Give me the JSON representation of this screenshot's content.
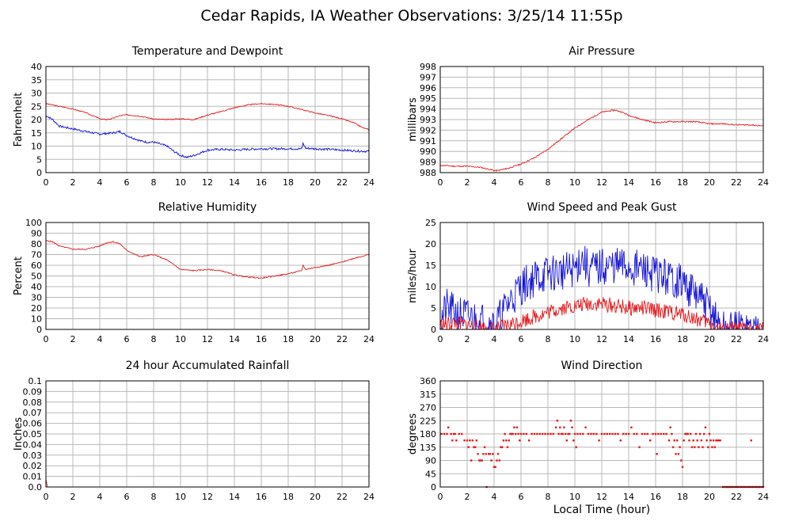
{
  "page": {
    "title": "Cedar Rapids, IA Weather Observations: 3/25/14 11:55p"
  },
  "colors": {
    "red": "#e4191c",
    "blue": "#1414d8",
    "grid": "#b8b8b8"
  },
  "xaxis": {
    "label": "Local Time (hour)",
    "ticks": [
      0,
      2,
      4,
      6,
      8,
      10,
      12,
      14,
      16,
      18,
      20,
      22,
      24
    ],
    "range": [
      0,
      24
    ]
  },
  "chart_data": [
    {
      "id": "temp",
      "type": "line",
      "title": "Temperature and Dewpoint",
      "ylabel": "Fahrenheit",
      "xlabel": "",
      "ylim": [
        0,
        40
      ],
      "yticks": [
        0,
        5,
        10,
        15,
        20,
        25,
        30,
        35,
        40
      ],
      "grid": true,
      "series": [
        {
          "color": "#e4191c",
          "noise": 0.2,
          "seed": 3,
          "x": [
            0,
            1,
            2,
            3,
            3.7,
            4,
            4.5,
            5,
            5.5,
            6,
            7,
            8,
            9,
            10,
            11,
            12,
            13,
            14,
            15,
            15.5,
            16,
            17,
            18,
            19,
            20,
            21,
            22,
            23,
            23.5,
            24
          ],
          "y": [
            26,
            25,
            24,
            22.5,
            21,
            20.3,
            20,
            20.5,
            21.5,
            21.8,
            21.3,
            20.2,
            20,
            20.3,
            20,
            21.7,
            23,
            24.5,
            25.5,
            25.8,
            26,
            25.7,
            25,
            23.8,
            22.5,
            21.5,
            20.3,
            18.5,
            17,
            16.2
          ]
        },
        {
          "color": "#1414d8",
          "noise": 0.4,
          "seed": 7,
          "x": [
            0,
            0.5,
            1,
            2,
            3,
            4,
            5,
            5.5,
            6,
            7,
            7.5,
            8,
            9,
            9.5,
            10,
            10.5,
            11,
            11.5,
            12,
            13,
            14,
            15,
            16,
            17,
            18,
            19,
            19.1,
            19.3,
            20,
            21,
            22,
            23,
            24
          ],
          "y": [
            21.5,
            20,
            17.5,
            16.5,
            15.5,
            14.5,
            15,
            15.5,
            14,
            12,
            11.5,
            11.5,
            10,
            8,
            6.5,
            5.8,
            6.5,
            7.5,
            8.5,
            8.8,
            8.5,
            8.8,
            9,
            9,
            9,
            9,
            11,
            9.2,
            9,
            8.8,
            8.5,
            8.2,
            8
          ]
        }
      ]
    },
    {
      "id": "pressure",
      "type": "line",
      "title": "Air Pressure",
      "ylabel": "millibars",
      "xlabel": "",
      "ylim": [
        988,
        998
      ],
      "yticks": [
        988,
        989,
        990,
        991,
        992,
        993,
        994,
        995,
        996,
        997,
        998
      ],
      "grid": true,
      "series": [
        {
          "color": "#e4191c",
          "noise": 0.06,
          "seed": 11,
          "x": [
            0,
            1,
            2,
            3,
            4,
            4.3,
            5,
            6,
            7,
            8,
            9,
            10,
            11,
            12,
            12.5,
            13,
            13.5,
            14,
            15,
            16,
            17,
            18,
            19,
            20,
            21,
            22,
            23,
            24
          ],
          "y": [
            988.7,
            988.6,
            988.6,
            988.5,
            988.2,
            988.2,
            988.4,
            988.8,
            989.4,
            990.2,
            991.2,
            992.2,
            993,
            993.7,
            993.8,
            993.9,
            993.7,
            993.4,
            993,
            992.7,
            992.8,
            992.8,
            992.8,
            992.6,
            992.6,
            992.5,
            992.5,
            992.4
          ]
        }
      ]
    },
    {
      "id": "humidity",
      "type": "line",
      "title": "Relative Humidity",
      "ylabel": "Percent",
      "xlabel": "",
      "ylim": [
        0,
        100
      ],
      "yticks": [
        0,
        10,
        20,
        30,
        40,
        50,
        60,
        70,
        80,
        90,
        100
      ],
      "grid": true,
      "series": [
        {
          "color": "#e4191c",
          "noise": 0.5,
          "seed": 5,
          "x": [
            0,
            0.5,
            1,
            2,
            3,
            4,
            4.5,
            5,
            5.5,
            6,
            7,
            8,
            9,
            10,
            11,
            12,
            13,
            14,
            15,
            16,
            17,
            18,
            19,
            19.1,
            19.3,
            20,
            21,
            22,
            23,
            24
          ],
          "y": [
            83,
            82,
            78,
            75,
            75,
            78,
            81,
            82,
            80,
            74,
            68,
            70,
            65,
            56,
            55,
            56,
            55,
            51,
            49,
            48,
            50,
            52,
            55,
            60,
            56,
            58,
            60,
            63,
            67,
            70
          ]
        }
      ]
    },
    {
      "id": "wind",
      "type": "line",
      "title": "Wind Speed and Peak Gust",
      "ylabel": "miles/hour",
      "xlabel": "",
      "ylim": [
        0,
        25
      ],
      "yticks": [
        0,
        5,
        10,
        15,
        20,
        25
      ],
      "grid": true,
      "series": [
        {
          "color": "#1414d8",
          "noise": 4.5,
          "seed": 21,
          "x": [
            0,
            0.5,
            1,
            2,
            3,
            3.5,
            4,
            4.5,
            5,
            6,
            7,
            8,
            9,
            10,
            10.5,
            11,
            12,
            13,
            14,
            15,
            16,
            17,
            18,
            19,
            20,
            20.5,
            21,
            22,
            23,
            23.1,
            23.2,
            24
          ],
          "y": [
            2,
            5,
            4,
            3,
            2,
            2,
            1,
            3,
            6,
            10,
            12,
            13,
            13.5,
            14,
            17,
            14,
            14.5,
            15,
            14.5,
            14,
            13,
            12,
            11,
            8,
            5,
            2,
            0,
            0,
            0,
            1,
            0,
            0
          ]
        },
        {
          "color": "#e4191c",
          "noise": 1.8,
          "seed": 33,
          "x": [
            0,
            1,
            2,
            3,
            4,
            5,
            6,
            7,
            8,
            9,
            10,
            11,
            12,
            13,
            14,
            15,
            16,
            17,
            18,
            19,
            20,
            20.5,
            21,
            24
          ],
          "y": [
            1,
            1.5,
            1,
            0.5,
            0,
            1,
            2,
            3,
            4,
            5,
            5.5,
            6,
            6,
            5.5,
            5,
            5,
            4.5,
            4,
            3.5,
            2.5,
            1.5,
            0.5,
            0,
            0
          ]
        }
      ]
    },
    {
      "id": "rain",
      "type": "line",
      "title": "24 hour Accumulated Rainfall",
      "ylabel": "Inches",
      "xlabel": "",
      "ylim": [
        0,
        0.1
      ],
      "yticks": [
        0.0,
        0.01,
        0.02,
        0.03,
        0.04,
        0.05,
        0.06,
        0.07,
        0.08,
        0.09,
        0.1
      ],
      "ytick_labels": [
        "0.0",
        "0.01",
        "0.02",
        "0.03",
        "0.04",
        "0.05",
        "0.06",
        "0.07",
        "0.08",
        "0.09",
        "0.1"
      ],
      "grid": true,
      "series": [
        {
          "color": "#e4191c",
          "noise": 0,
          "seed": 1,
          "x": [
            0,
            0.05,
            0.12,
            24
          ],
          "y": [
            0.007,
            0.004,
            0,
            0
          ]
        }
      ]
    },
    {
      "id": "direction",
      "type": "scatter",
      "title": "Wind Direction",
      "ylabel": "degrees",
      "xlabel": "Local Time (hour)",
      "ylim": [
        0,
        360
      ],
      "yticks": [
        0,
        45,
        90,
        135,
        180,
        225,
        270,
        315,
        360
      ],
      "grid": true,
      "points": [
        [
          0.1,
          180
        ],
        [
          0.3,
          180
        ],
        [
          0.5,
          180
        ],
        [
          0.6,
          202
        ],
        [
          0.8,
          180
        ],
        [
          0.9,
          158
        ],
        [
          1.0,
          180
        ],
        [
          1.1,
          180
        ],
        [
          1.2,
          158
        ],
        [
          1.4,
          180
        ],
        [
          1.6,
          180
        ],
        [
          1.8,
          158
        ],
        [
          2.0,
          158
        ],
        [
          2.1,
          135
        ],
        [
          2.2,
          158
        ],
        [
          2.3,
          90
        ],
        [
          2.4,
          158
        ],
        [
          2.5,
          135
        ],
        [
          2.6,
          135
        ],
        [
          2.7,
          158
        ],
        [
          2.8,
          112
        ],
        [
          2.9,
          90
        ],
        [
          3.0,
          90
        ],
        [
          3.1,
          90
        ],
        [
          3.2,
          112
        ],
        [
          3.3,
          135
        ],
        [
          3.4,
          112
        ],
        [
          3.45,
          0
        ],
        [
          3.6,
          112
        ],
        [
          3.7,
          112
        ],
        [
          3.8,
          90
        ],
        [
          3.9,
          112
        ],
        [
          4.0,
          68
        ],
        [
          4.1,
          68
        ],
        [
          4.2,
          90
        ],
        [
          4.3,
          112
        ],
        [
          4.4,
          90
        ],
        [
          4.5,
          135
        ],
        [
          4.6,
          135
        ],
        [
          4.7,
          158
        ],
        [
          4.8,
          180
        ],
        [
          4.9,
          158
        ],
        [
          5.0,
          135
        ],
        [
          5.1,
          158
        ],
        [
          5.2,
          180
        ],
        [
          5.3,
          180
        ],
        [
          5.4,
          180
        ],
        [
          5.5,
          202
        ],
        [
          5.6,
          180
        ],
        [
          5.7,
          202
        ],
        [
          5.8,
          180
        ],
        [
          5.9,
          158
        ],
        [
          6.0,
          180
        ],
        [
          6.2,
          180
        ],
        [
          6.4,
          180
        ],
        [
          6.6,
          158
        ],
        [
          6.8,
          180
        ],
        [
          7.0,
          180
        ],
        [
          7.2,
          180
        ],
        [
          7.4,
          180
        ],
        [
          7.6,
          180
        ],
        [
          7.8,
          180
        ],
        [
          8.0,
          180
        ],
        [
          8.2,
          180
        ],
        [
          8.4,
          180
        ],
        [
          8.6,
          202
        ],
        [
          8.7,
          225
        ],
        [
          8.8,
          180
        ],
        [
          8.9,
          202
        ],
        [
          9.0,
          180
        ],
        [
          9.1,
          180
        ],
        [
          9.2,
          202
        ],
        [
          9.3,
          180
        ],
        [
          9.4,
          158
        ],
        [
          9.5,
          180
        ],
        [
          9.6,
          180
        ],
        [
          9.7,
          225
        ],
        [
          9.8,
          202
        ],
        [
          9.9,
          158
        ],
        [
          10.0,
          180
        ],
        [
          10.1,
          135
        ],
        [
          10.2,
          180
        ],
        [
          10.4,
          180
        ],
        [
          10.6,
          180
        ],
        [
          10.8,
          202
        ],
        [
          11.0,
          180
        ],
        [
          11.2,
          180
        ],
        [
          11.4,
          180
        ],
        [
          11.6,
          180
        ],
        [
          11.8,
          158
        ],
        [
          12.0,
          180
        ],
        [
          12.2,
          180
        ],
        [
          12.4,
          180
        ],
        [
          12.6,
          180
        ],
        [
          12.8,
          180
        ],
        [
          13.0,
          180
        ],
        [
          13.2,
          180
        ],
        [
          13.4,
          158
        ],
        [
          13.6,
          180
        ],
        [
          13.8,
          180
        ],
        [
          14.0,
          180
        ],
        [
          14.2,
          202
        ],
        [
          14.4,
          180
        ],
        [
          14.6,
          180
        ],
        [
          14.8,
          135
        ],
        [
          15.0,
          180
        ],
        [
          15.2,
          180
        ],
        [
          15.4,
          180
        ],
        [
          15.6,
          158
        ],
        [
          15.8,
          180
        ],
        [
          16.0,
          180
        ],
        [
          16.1,
          112
        ],
        [
          16.2,
          180
        ],
        [
          16.4,
          180
        ],
        [
          16.6,
          180
        ],
        [
          16.8,
          180
        ],
        [
          17.0,
          158
        ],
        [
          17.1,
          202
        ],
        [
          17.2,
          180
        ],
        [
          17.3,
          135
        ],
        [
          17.4,
          158
        ],
        [
          17.5,
          112
        ],
        [
          17.6,
          158
        ],
        [
          17.7,
          112
        ],
        [
          17.8,
          135
        ],
        [
          17.9,
          90
        ],
        [
          18.0,
          68
        ],
        [
          18.1,
          158
        ],
        [
          18.2,
          180
        ],
        [
          18.3,
          180
        ],
        [
          18.4,
          180
        ],
        [
          18.5,
          158
        ],
        [
          18.6,
          180
        ],
        [
          18.7,
          135
        ],
        [
          18.8,
          158
        ],
        [
          18.9,
          135
        ],
        [
          19.0,
          180
        ],
        [
          19.1,
          158
        ],
        [
          19.2,
          135
        ],
        [
          19.3,
          180
        ],
        [
          19.4,
          158
        ],
        [
          19.5,
          135
        ],
        [
          19.6,
          180
        ],
        [
          19.7,
          202
        ],
        [
          19.8,
          158
        ],
        [
          19.9,
          135
        ],
        [
          20.0,
          180
        ],
        [
          20.1,
          158
        ],
        [
          20.2,
          135
        ],
        [
          20.3,
          158
        ],
        [
          20.4,
          135
        ],
        [
          20.5,
          158
        ],
        [
          20.6,
          158
        ],
        [
          20.7,
          158
        ],
        [
          20.8,
          158
        ],
        [
          23.1,
          158
        ],
        [
          21.0,
          0
        ],
        [
          21.15,
          0
        ],
        [
          21.3,
          0
        ],
        [
          21.45,
          0
        ],
        [
          21.6,
          0
        ],
        [
          21.75,
          0
        ],
        [
          21.9,
          0
        ],
        [
          22.05,
          0
        ],
        [
          22.2,
          0
        ],
        [
          22.35,
          0
        ],
        [
          22.5,
          0
        ],
        [
          22.65,
          0
        ],
        [
          22.8,
          0
        ],
        [
          22.95,
          0
        ],
        [
          23.1,
          0
        ],
        [
          23.25,
          0
        ],
        [
          23.4,
          0
        ],
        [
          23.55,
          0
        ],
        [
          23.7,
          0
        ],
        [
          23.85,
          0
        ],
        [
          24.0,
          0
        ]
      ],
      "color": "#e4191c"
    }
  ]
}
